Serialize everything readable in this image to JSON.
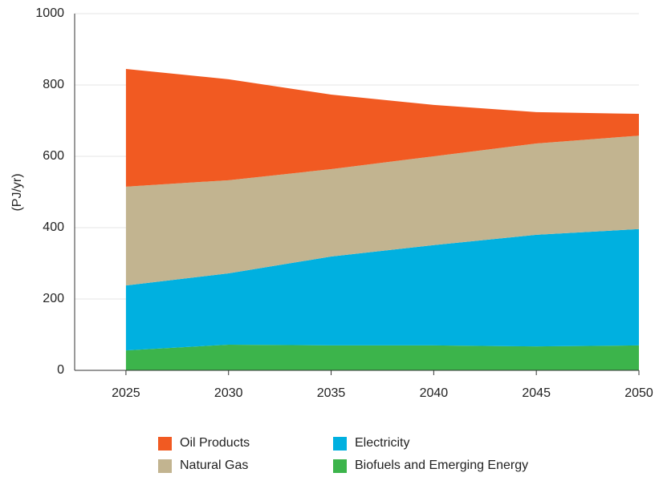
{
  "chart_data": {
    "type": "stacked-area",
    "y_label": "(PJ/yr)",
    "x": [
      2025,
      2030,
      2035,
      2040,
      2045,
      2050
    ],
    "series": [
      {
        "name": "Oil Products",
        "color": "#f15a22",
        "values": [
          330,
          283,
          209,
          144,
          88,
          61
        ]
      },
      {
        "name": "Natural Gas",
        "color": "#c2b490",
        "values": [
          277,
          261,
          245,
          249,
          256,
          262
        ]
      },
      {
        "name": "Electricity",
        "color": "#00b0e0",
        "values": [
          182,
          200,
          249,
          281,
          313,
          326
        ]
      },
      {
        "name": "Biofuels and Emerging Energy",
        "color": "#3cb44b",
        "values": [
          56,
          72,
          70,
          70,
          67,
          70
        ]
      }
    ],
    "xlim": [
      2022.5,
      2050
    ],
    "xticks": [
      2025,
      2030,
      2035,
      2040,
      2045,
      2050
    ],
    "ylim": [
      0,
      1000
    ],
    "yticks": [
      0,
      200,
      400,
      600,
      800,
      1000
    ],
    "grid": true
  }
}
